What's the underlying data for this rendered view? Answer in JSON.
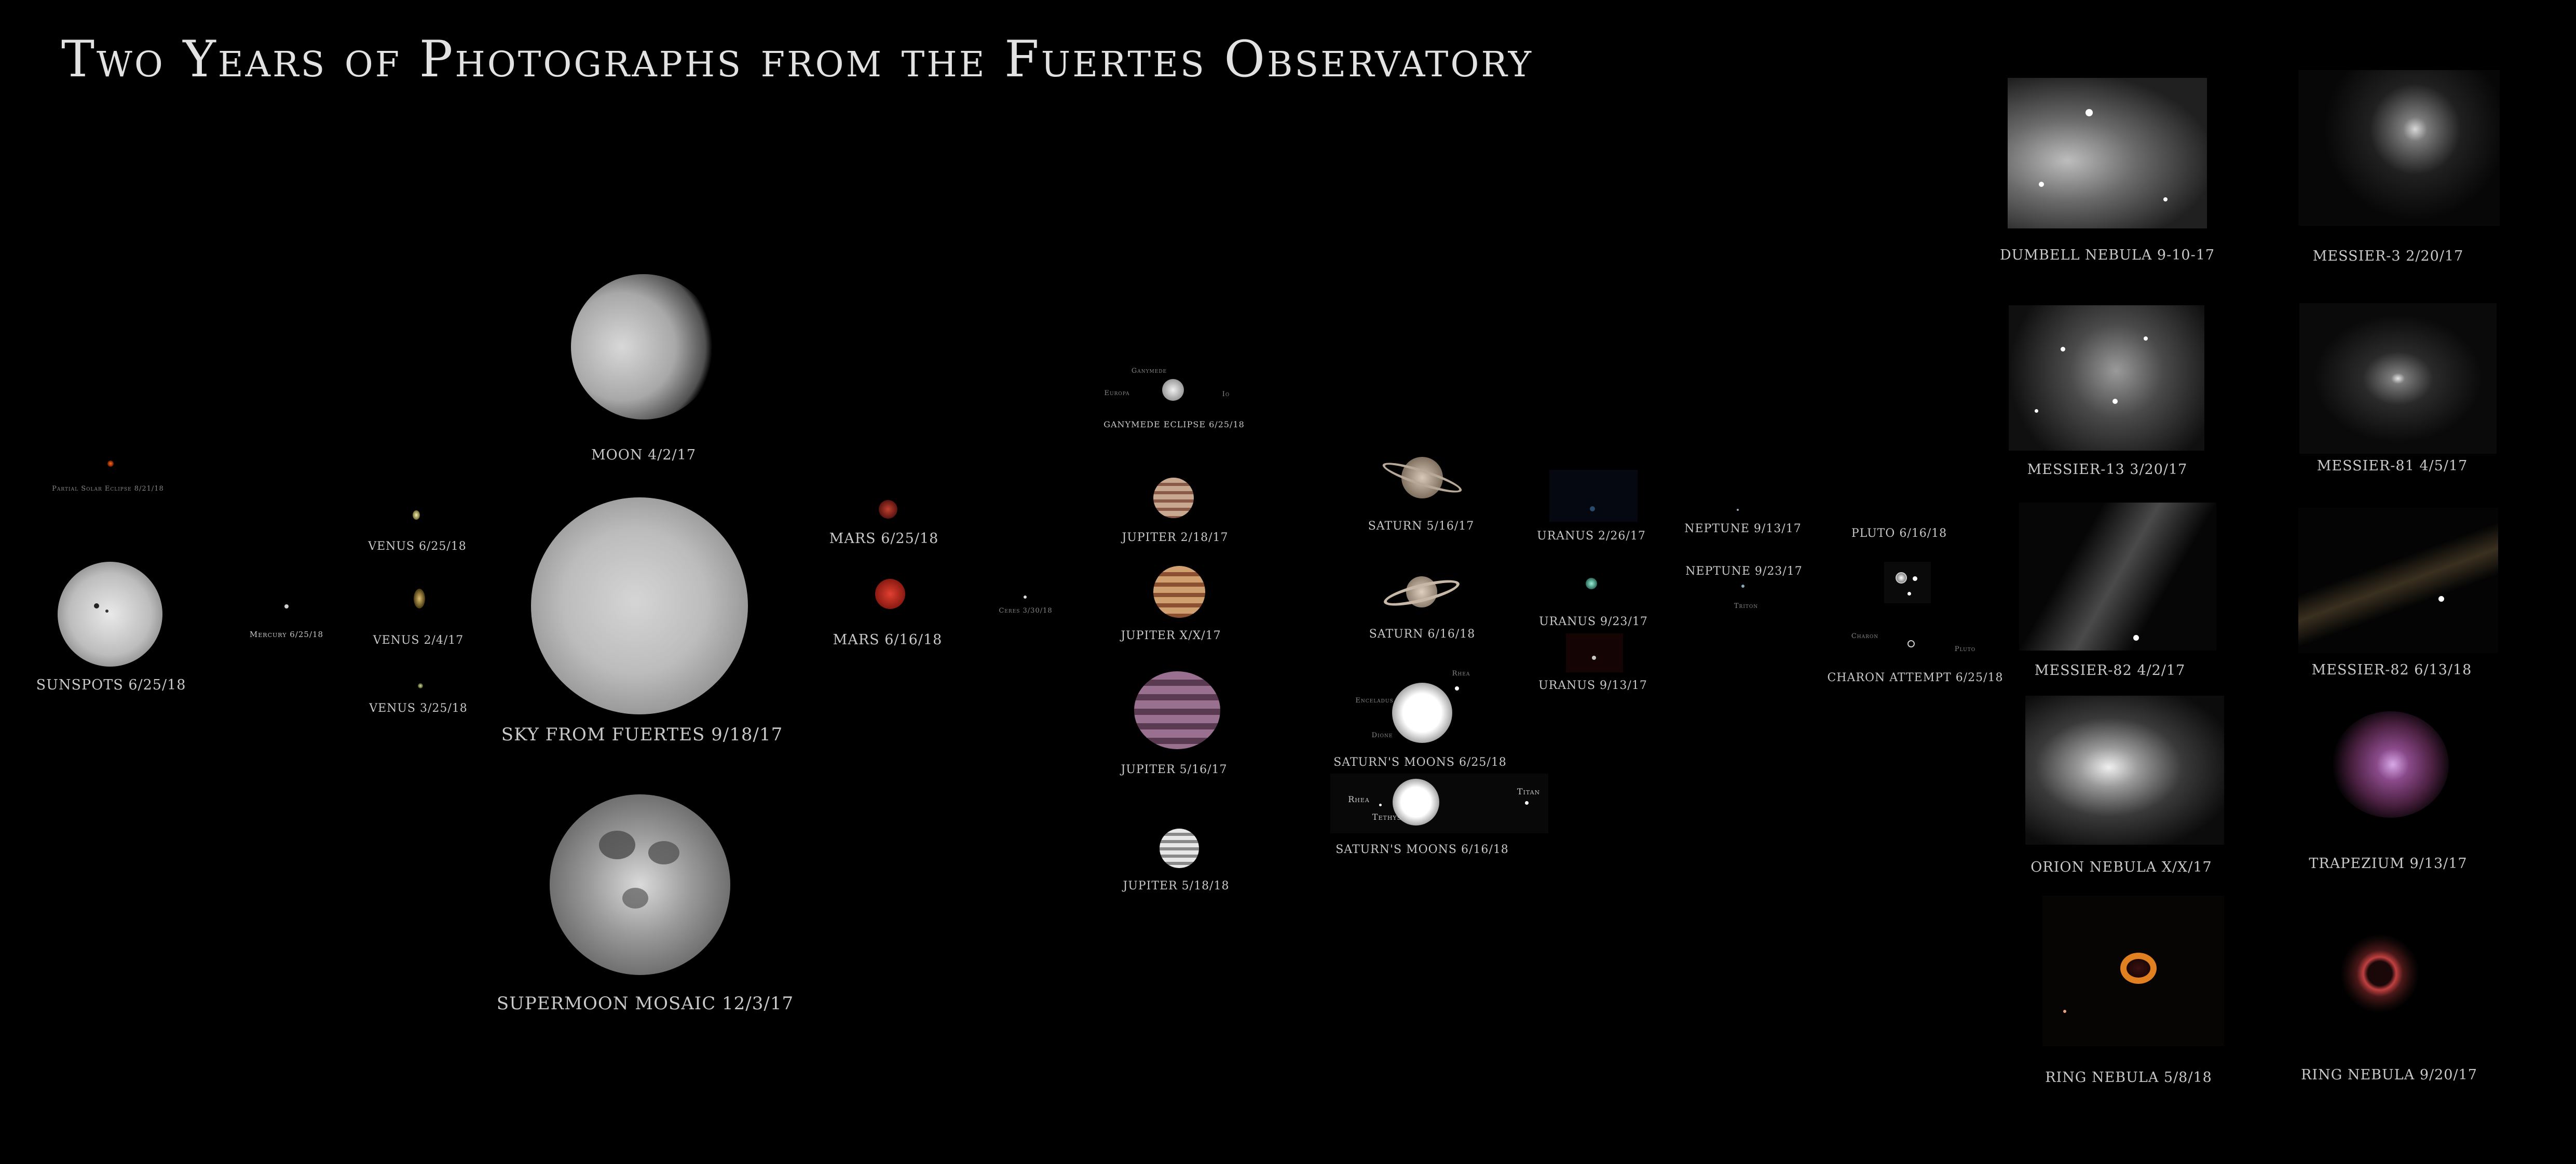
{
  "title": "Two Years of Photographs from the Fuertes Observatory",
  "sun": {
    "partial_eclipse": "Partial Solar Eclipse 8/21/18",
    "sunspots": "SUNSPOTS 6/25/18"
  },
  "mercury": "Mercury 6/25/18",
  "venus": [
    "VENUS 6/25/18",
    "VENUS 2/4/17",
    "VENUS 3/25/18"
  ],
  "moon": {
    "moon": "MOON 4/2/17",
    "sky": "SKY FROM FUERTES 9/18/17",
    "supermoon": "SUPERMOON MOSAIC 12/3/17"
  },
  "mars": [
    "MARS 6/25/18",
    "MARS 6/16/18"
  ],
  "ceres": "Ceres 3/30/18",
  "jupiter": {
    "ganymede_eclipse": "GANYMEDE ECLIPSE 6/25/18",
    "ganymede": "Ganymede",
    "europa": "Europa",
    "io": "Io",
    "labels": [
      "JUPITER 2/18/17",
      "JUPITER X/X/17",
      "JUPITER 5/16/17",
      "JUPITER 5/18/18"
    ]
  },
  "saturn": {
    "labels": [
      "SATURN 5/16/17",
      "SATURN 6/16/18"
    ],
    "moons_1": "SATURN'S MOONS 6/25/18",
    "moons_2": "SATURN'S MOONS 6/16/18",
    "rhea": "Rhea",
    "tethys": "Tethys",
    "titan": "Titan",
    "enceladus": "Enceladus",
    "dione": "Dione"
  },
  "uranus": [
    "URANUS 2/26/17",
    "URANUS 9/23/17",
    "URANUS 9/13/17"
  ],
  "neptune": {
    "labels": [
      "NEPTUNE 9/13/17",
      "NEPTUNE 9/23/17"
    ],
    "triton": "Triton"
  },
  "pluto": {
    "pluto": "PLUTO 6/16/18",
    "charon_attempt": "CHARON ATTEMPT 6/25/18",
    "charon": "Charon",
    "pluto_small": "Pluto"
  },
  "deep_sky": {
    "dumbbell": "DUMBELL NEBULA 9-10-17",
    "m3": "MESSIER-3  2/20/17",
    "m13": "MESSIER-13  3/20/17",
    "m81": "MESSIER-81 4/5/17",
    "m82a": "MESSIER-82  4/2/17",
    "m82b": "MESSIER-82  6/13/18",
    "orion": "ORION NEBULA X/X/17",
    "trapezium": "TRAPEZIUM 9/13/17",
    "ring_a": "RING NEBULA 5/8/18",
    "ring_b": "RING NEBULA 9/20/17"
  }
}
